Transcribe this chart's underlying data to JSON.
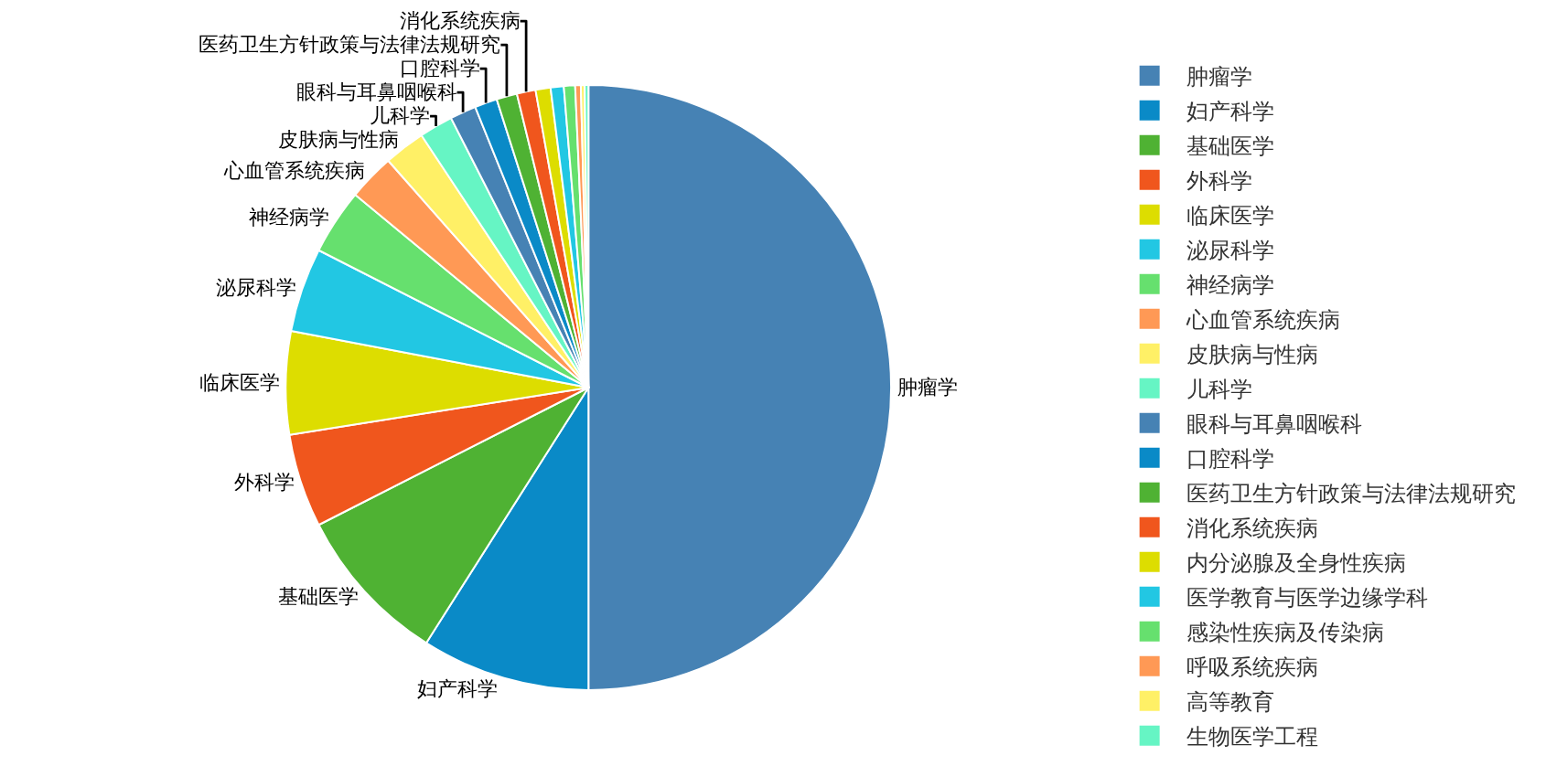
{
  "chart_data": {
    "type": "pie",
    "categories": [
      "肿瘤学",
      "妇产科学",
      "基础医学",
      "外科学",
      "临床医学",
      "泌尿科学",
      "神经病学",
      "心血管系统疾病",
      "皮肤病与性病",
      "儿科学",
      "眼科与耳鼻咽喉科",
      "口腔科学",
      "医药卫生方针政策与法律法规研究",
      "消化系统疾病",
      "内分泌腺及全身性疾病",
      "医学教育与医学边缘学科",
      "感染性疾病及传染病",
      "呼吸系统疾病",
      "高等教育",
      "生物医学工程"
    ],
    "values": [
      50,
      9,
      8.5,
      5,
      5.5,
      4.5,
      3.5,
      2.5,
      2.2,
      1.8,
      1.4,
      1.2,
      1.1,
      1,
      0.8,
      0.7,
      0.6,
      0.3,
      0.2,
      0.2
    ],
    "colors": [
      "#4682b4",
      "#0a8ac7",
      "#4fb233",
      "#f0561d",
      "#dddd00",
      "#22c7e3",
      "#66e06e",
      "#ff9955",
      "#fff066",
      "#66f5c4",
      "#4682b4",
      "#0a8ac7",
      "#4fb233",
      "#f0561d",
      "#dddd00",
      "#22c7e3",
      "#66e06e",
      "#ff9955",
      "#fff066",
      "#66f5c4"
    ],
    "value_labels": [
      "肿瘤学",
      "妇产科学",
      "基础医学",
      "外科学",
      "临床医学",
      "泌尿科学",
      "神经病学",
      "心血管系统疾病",
      "皮肤病与性病",
      "儿科学",
      "眼科与耳鼻咽喉科",
      "口腔科学",
      "医药卫生方针政策与法律法规研究",
      "消化系统疾病",
      null,
      null,
      null,
      null,
      null,
      null
    ],
    "legend": "right"
  }
}
